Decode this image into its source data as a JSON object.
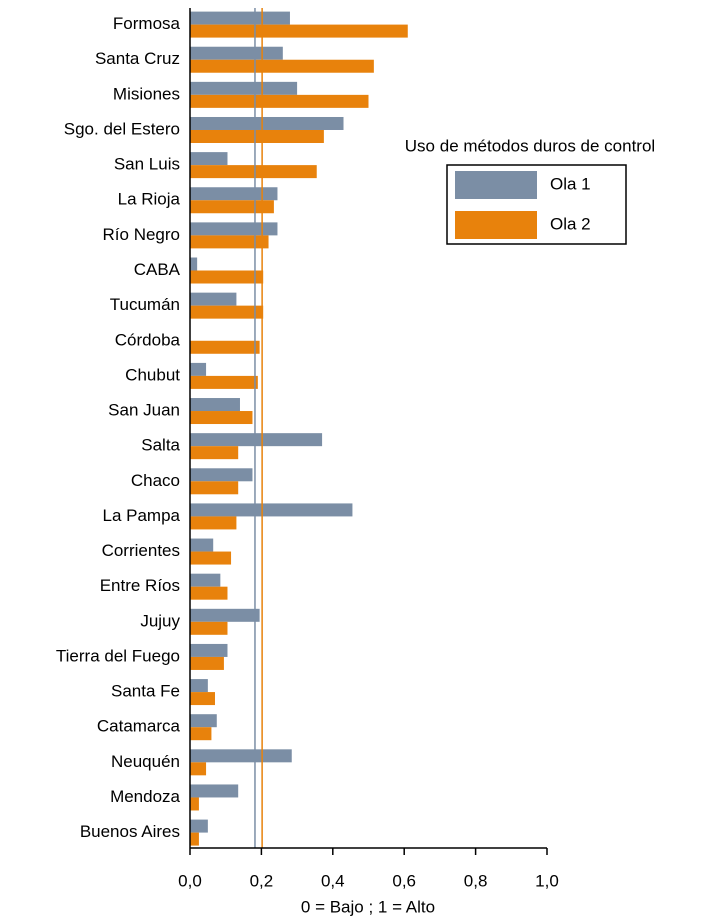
{
  "chart_data": {
    "type": "barh",
    "categories": [
      "Formosa",
      "Santa Cruz",
      "Misiones",
      "Sgo. del Estero",
      "San Luis",
      "La Rioja",
      "Río Negro",
      "CABA",
      "Tucumán",
      "Córdoba",
      "Chubut",
      "San Juan",
      "Salta",
      "Chaco",
      "La Pampa",
      "Corrientes",
      "Entre Ríos",
      "Jujuy",
      "Tierra del Fuego",
      "Santa Fe",
      "Catamarca",
      "Neuquén",
      "Mendoza",
      "Buenos Aires"
    ],
    "series": [
      {
        "name": "Ola 1",
        "color": "#7b8ea5",
        "values": [
          0.28,
          0.26,
          0.3,
          0.43,
          0.105,
          0.245,
          0.245,
          0.02,
          0.13,
          0,
          0.045,
          0.14,
          0.37,
          0.175,
          0.455,
          0.065,
          0.085,
          0.195,
          0.105,
          0.05,
          0.075,
          0.285,
          0.135,
          0.05
        ]
      },
      {
        "name": "Ola 2",
        "color": "#e8820c",
        "values": [
          0.61,
          0.515,
          0.5,
          0.375,
          0.355,
          0.235,
          0.22,
          0.205,
          0.205,
          0.195,
          0.19,
          0.175,
          0.135,
          0.135,
          0.13,
          0.115,
          0.105,
          0.105,
          0.095,
          0.07,
          0.06,
          0.045,
          0.025,
          0.025
        ]
      }
    ],
    "reference_lines": [
      {
        "value": 0.182,
        "color": "#7b8ea5"
      },
      {
        "value": 0.202,
        "color": "#e8820c"
      }
    ],
    "xlim": [
      0,
      1
    ],
    "xticks": [
      {
        "value": 0,
        "label": "0,0"
      },
      {
        "value": 0.2,
        "label": "0,2"
      },
      {
        "value": 0.4,
        "label": "0,4"
      },
      {
        "value": 0.6,
        "label": "0,6"
      },
      {
        "value": 0.8,
        "label": "0,8"
      },
      {
        "value": 1,
        "label": "1,0"
      }
    ],
    "xlabel": "0 = Bajo ; 1 = Alto",
    "legend_title": "Uso de métodos duros de control",
    "legend_position": "upper right"
  }
}
